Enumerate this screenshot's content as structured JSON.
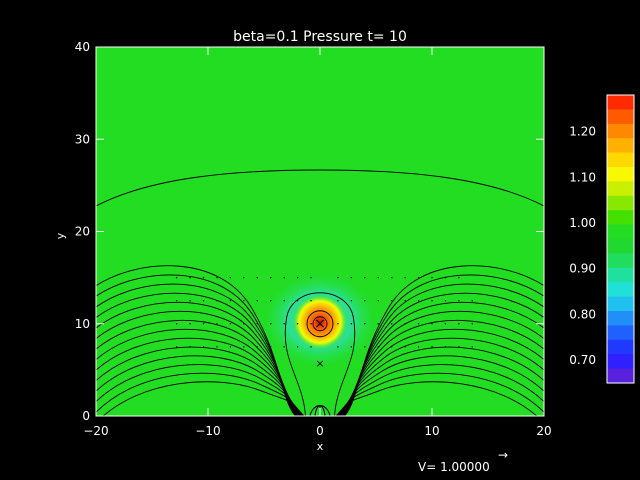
{
  "chart_data": {
    "type": "heatmap",
    "title": "beta=0.1 Pressure t= 10",
    "xlabel": "x",
    "ylabel": "y",
    "xlim": [
      -20,
      20
    ],
    "ylim": [
      0,
      40
    ],
    "x_ticks": [
      "−20",
      "−10",
      "0",
      "10",
      "20"
    ],
    "x_tick_values": [
      -20,
      -10,
      0,
      10,
      20
    ],
    "y_ticks": [
      "0",
      "10",
      "20",
      "30",
      "40"
    ],
    "y_tick_values": [
      0,
      10,
      20,
      30,
      40
    ],
    "colorbar": {
      "range": [
        0.65,
        1.28
      ],
      "tick_labels": [
        "1.20",
        "1.10",
        "1.00",
        "0.90",
        "0.80",
        "0.70"
      ],
      "tick_values": [
        1.2,
        1.1,
        1.0,
        0.9,
        0.8,
        0.7
      ]
    },
    "features": {
      "background_value": 1.0,
      "pressure_peak": {
        "x": 0,
        "y": 10,
        "value": 1.28
      },
      "low_pressure_ring_value": 0.85,
      "x_points": [
        {
          "x": 0,
          "y": 10
        },
        {
          "x": 0,
          "y": 6
        }
      ]
    },
    "vector_key": {
      "label": "V= 1.00000",
      "arrow": "→"
    }
  },
  "colors": {
    "background": "#000000",
    "field_base": "#22dd22",
    "axes": "#ffffff",
    "contour": "#000000"
  }
}
